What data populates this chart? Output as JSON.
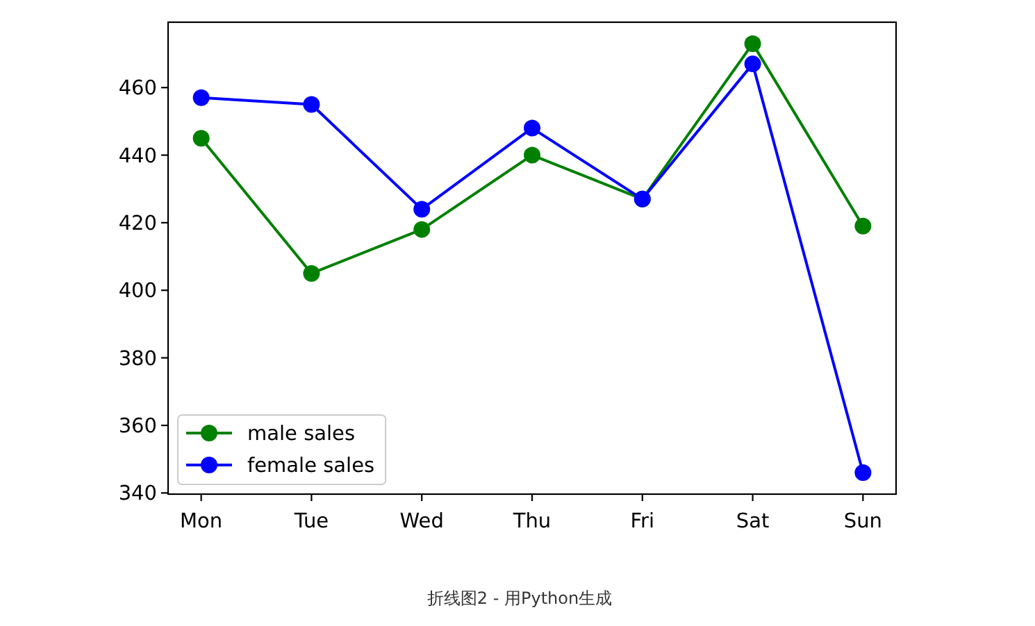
{
  "chart_data": {
    "type": "line",
    "categories": [
      "Mon",
      "Tue",
      "Wed",
      "Thu",
      "Fri",
      "Sat",
      "Sun"
    ],
    "series": [
      {
        "name": "male sales",
        "color": "#008000",
        "values": [
          445,
          405,
          418,
          440,
          427,
          473,
          419
        ]
      },
      {
        "name": "female sales",
        "color": "#0000ff",
        "values": [
          457,
          455,
          424,
          448,
          427,
          467,
          346
        ]
      }
    ],
    "ylim": [
      339.65,
      479.35
    ],
    "yticks": [
      340,
      360,
      380,
      400,
      420,
      440,
      460
    ],
    "marker": "circle",
    "line_style": "solid",
    "legend": "bottom left",
    "annotations": [
      "折线图2 - 用Python生成"
    ]
  }
}
